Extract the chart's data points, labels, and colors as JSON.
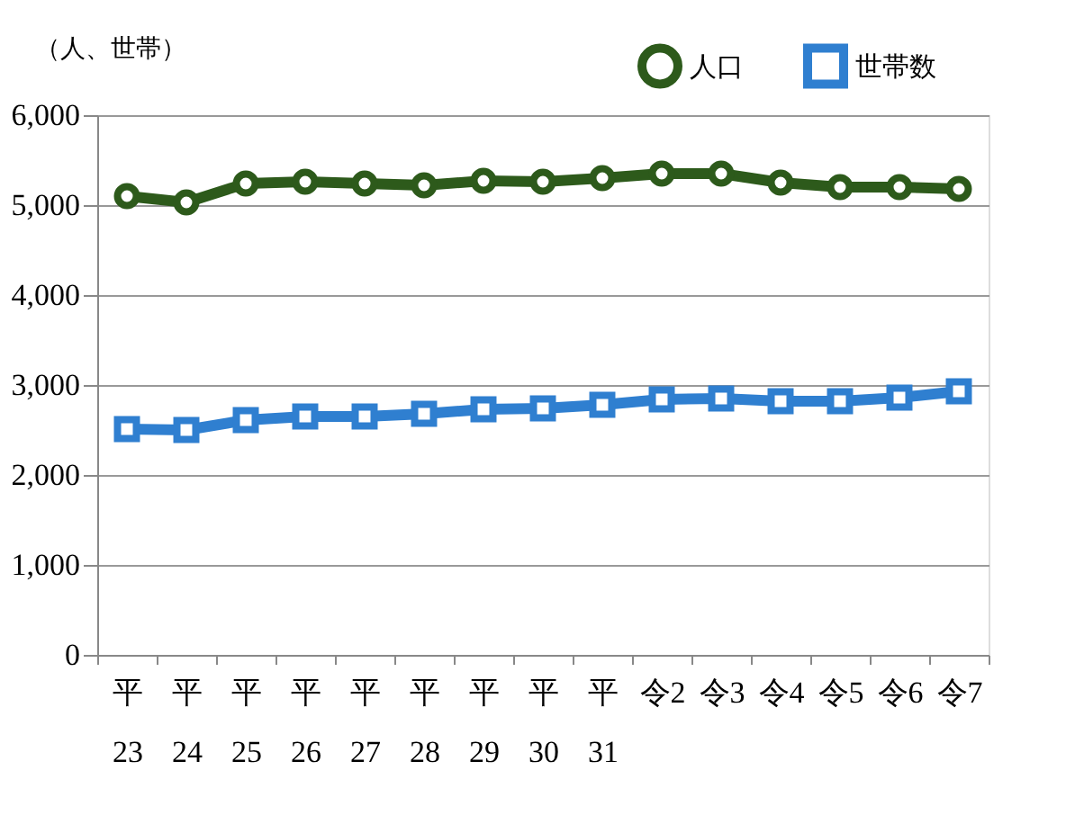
{
  "chart_data": {
    "type": "line",
    "ylabel": "（人、世帯）",
    "categories": [
      "平\n23",
      "平\n24",
      "平\n25",
      "平\n26",
      "平\n27",
      "平\n28",
      "平\n29",
      "平\n30",
      "平\n31",
      "令2",
      "令3",
      "令4",
      "令5",
      "令6",
      "令7"
    ],
    "series": [
      {
        "name": "人口",
        "color": "#2d5a1b",
        "marker": "circle",
        "values": [
          5100,
          5030,
          5240,
          5260,
          5240,
          5220,
          5270,
          5260,
          5300,
          5350,
          5350,
          5250,
          5200,
          5200,
          5180
        ]
      },
      {
        "name": "世帯数",
        "color": "#2f7fd0",
        "marker": "square",
        "values": [
          2510,
          2500,
          2610,
          2650,
          2650,
          2680,
          2730,
          2740,
          2780,
          2840,
          2850,
          2820,
          2820,
          2860,
          2930
        ]
      }
    ],
    "ylim": [
      0,
      6000
    ],
    "yticks": [
      0,
      {
        "value": 1000,
        "label": "1,000"
      },
      {
        "value": 2000,
        "label": "2,000"
      },
      {
        "value": 3000,
        "label": "3,000"
      },
      {
        "value": 4000,
        "label": "4,000"
      },
      {
        "value": 5000,
        "label": "5,000"
      },
      {
        "value": 6000,
        "label": "6,000"
      }
    ],
    "grid": "y",
    "legend": "top right"
  }
}
